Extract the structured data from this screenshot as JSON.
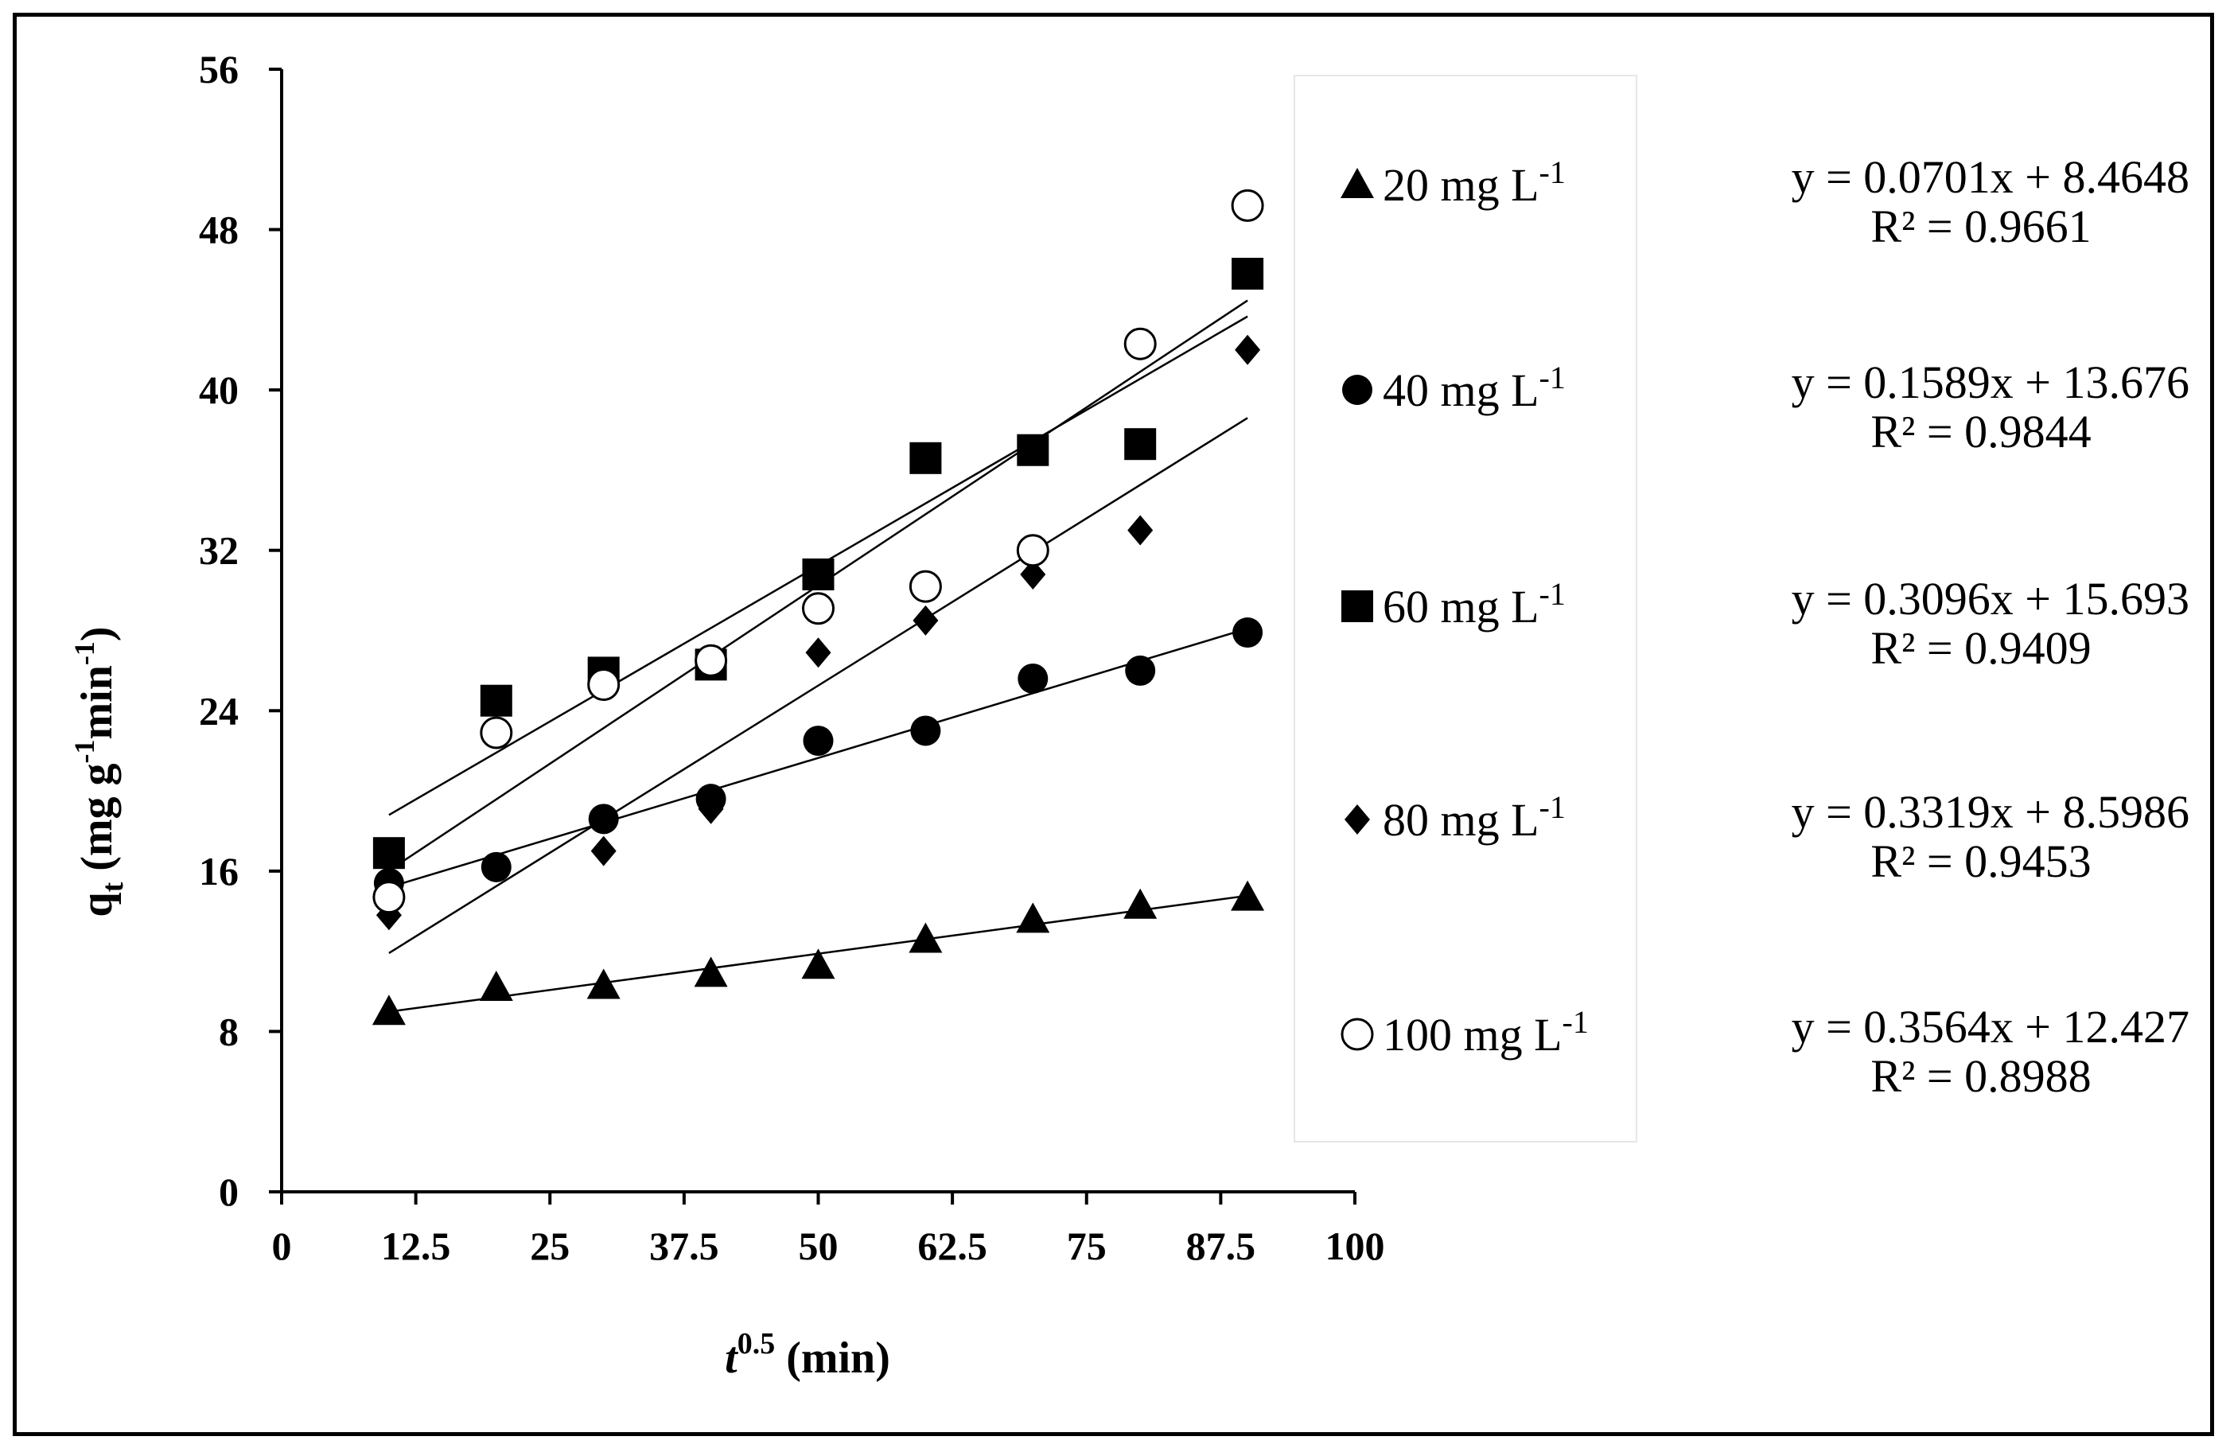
{
  "chart_data": {
    "type": "scatter",
    "xlabel": {
      "main": "t",
      "sup": "0.5",
      "rest": " (min)"
    },
    "ylabel": {
      "main": "q",
      "sub": "t",
      "unit_a": " (mg g",
      "sup_a": "-1",
      "unit_b": "min",
      "sup_b": "-1",
      "unit_c": ")"
    },
    "xlim": [
      0,
      100
    ],
    "ylim": [
      0,
      56
    ],
    "xticks": [
      "0",
      "12.5",
      "25",
      "37.5",
      "50",
      "62.5",
      "75",
      "87.5",
      "100"
    ],
    "xtick_values": [
      0,
      12.5,
      25,
      37.5,
      50,
      62.5,
      75,
      87.5,
      100
    ],
    "yticks": [
      "0",
      "8",
      "16",
      "24",
      "32",
      "40",
      "48",
      "56"
    ],
    "ytick_values": [
      0,
      8,
      16,
      24,
      32,
      40,
      48,
      56
    ],
    "x": [
      10,
      20,
      30,
      40,
      50,
      60,
      70,
      80,
      90
    ],
    "series": [
      {
        "name": "20  mg L",
        "sup": "-1",
        "marker": "triangle",
        "values": [
          9.0,
          10.2,
          10.3,
          10.9,
          11.3,
          12.6,
          13.6,
          14.3,
          14.7
        ],
        "slope": 0.0701,
        "intercept": 8.4648,
        "equation": "y = 0.0701x + 8.4648",
        "r2": "R² = 0.9661"
      },
      {
        "name": "40  mg L",
        "sup": "-1",
        "marker": "circle",
        "values": [
          15.4,
          16.2,
          18.6,
          19.6,
          22.5,
          23.0,
          25.6,
          26.0,
          27.9
        ],
        "slope": 0.1589,
        "intercept": 13.676,
        "equation": "y = 0.1589x + 13.676",
        "r2": "R² = 0.9844"
      },
      {
        "name": "60  mg L",
        "sup": "-1",
        "marker": "square",
        "values": [
          16.9,
          24.5,
          25.9,
          26.3,
          30.8,
          36.6,
          37.0,
          37.3,
          45.8
        ],
        "slope": 0.3096,
        "intercept": 15.693,
        "equation": "y = 0.3096x + 15.693",
        "r2": "R² = 0.9409"
      },
      {
        "name": "80  mg L",
        "sup": "-1",
        "marker": "diamond",
        "values": [
          13.8,
          16.2,
          17.0,
          19.1,
          26.9,
          28.5,
          30.8,
          33.0,
          42.0
        ],
        "slope": 0.3319,
        "intercept": 8.5986,
        "equation": "y = 0.3319x + 8.5986",
        "r2": "R² = 0.9453"
      },
      {
        "name": "100  mg L",
        "sup": "-1",
        "marker": "open-circle",
        "values": [
          14.7,
          22.9,
          25.3,
          26.5,
          29.1,
          30.2,
          32.0,
          42.3,
          49.2
        ],
        "slope": 0.3564,
        "intercept": 12.427,
        "equation": "y = 0.3564x + 12.427",
        "r2": "R² = 0.8988"
      }
    ]
  }
}
